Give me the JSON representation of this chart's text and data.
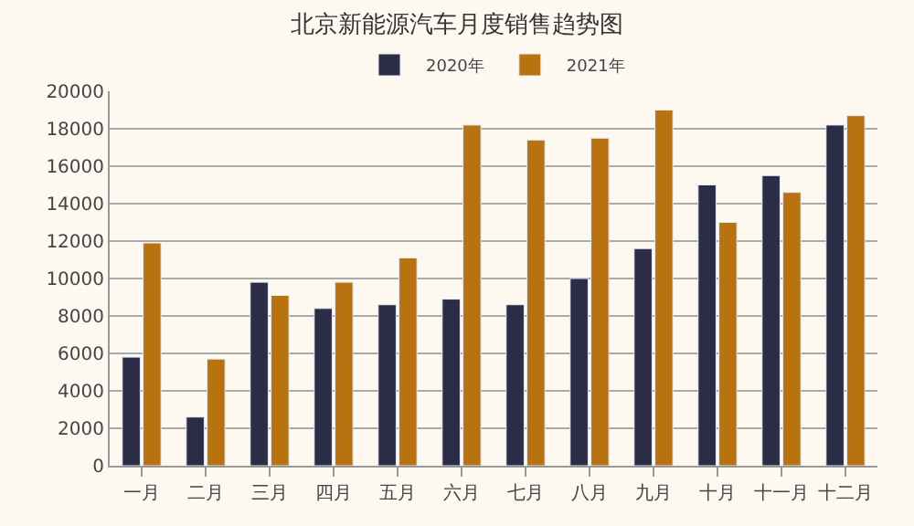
{
  "chart_data": {
    "type": "bar",
    "title": "北京新能源汽车月度销售趋势图",
    "categories": [
      "一月",
      "二月",
      "三月",
      "四月",
      "五月",
      "六月",
      "七月",
      "八月",
      "九月",
      "十月",
      "十一月",
      "十二月"
    ],
    "series": [
      {
        "name": "2020年",
        "color": "#2b2d47",
        "values": [
          5800,
          2600,
          9800,
          8400,
          8600,
          8900,
          8600,
          10000,
          11600,
          15000,
          15500,
          18200
        ]
      },
      {
        "name": "2021年",
        "color": "#b8720f",
        "values": [
          11900,
          5700,
          9100,
          9800,
          11100,
          18200,
          17400,
          17500,
          19000,
          13000,
          14600,
          18700
        ]
      }
    ],
    "ylim": [
      0,
      20000
    ],
    "yticks": [
      0,
      2000,
      4000,
      6000,
      8000,
      10000,
      12000,
      14000,
      16000,
      18000,
      20000
    ],
    "grid": "y",
    "legend": "top"
  }
}
